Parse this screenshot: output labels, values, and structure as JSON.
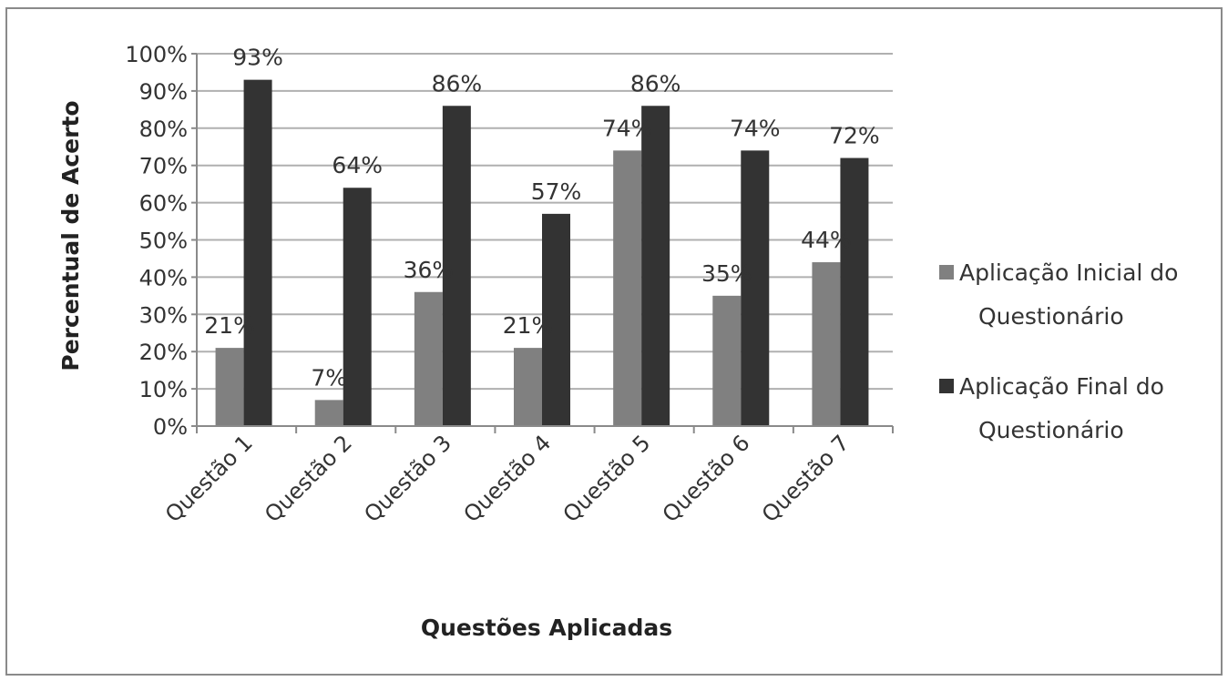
{
  "chart_data": {
    "type": "bar",
    "categories": [
      "Questão 1",
      "Questão 2",
      "Questão 3",
      "Questão 4",
      "Questão 5",
      "Questão 6",
      "Questão 7"
    ],
    "series": [
      {
        "name": "Aplicação Inicial do Questionário",
        "values": [
          21,
          7,
          36,
          21,
          74,
          35,
          44
        ],
        "labels": [
          "21%",
          "7%",
          "36%",
          "21%",
          "74%",
          "35%",
          "44%"
        ],
        "color": "#808080"
      },
      {
        "name": "Aplicação Final do Questionário",
        "values": [
          93,
          64,
          86,
          57,
          86,
          74,
          72
        ],
        "labels": [
          "93%",
          "64%",
          "86%",
          "57%",
          "86%",
          "74%",
          "72%"
        ],
        "color": "#333333"
      }
    ],
    "yticks": [
      "0%",
      "10%",
      "20%",
      "30%",
      "40%",
      "50%",
      "60%",
      "70%",
      "80%",
      "90%",
      "100%"
    ],
    "ylim": [
      0,
      100
    ],
    "xlabel": "Questões Aplicadas",
    "ylabel": "Percentual de Acerto",
    "grid": true,
    "legend_position": "right",
    "gridline_color": "#b0b0b0",
    "axis_color": "#8a8a8a"
  }
}
